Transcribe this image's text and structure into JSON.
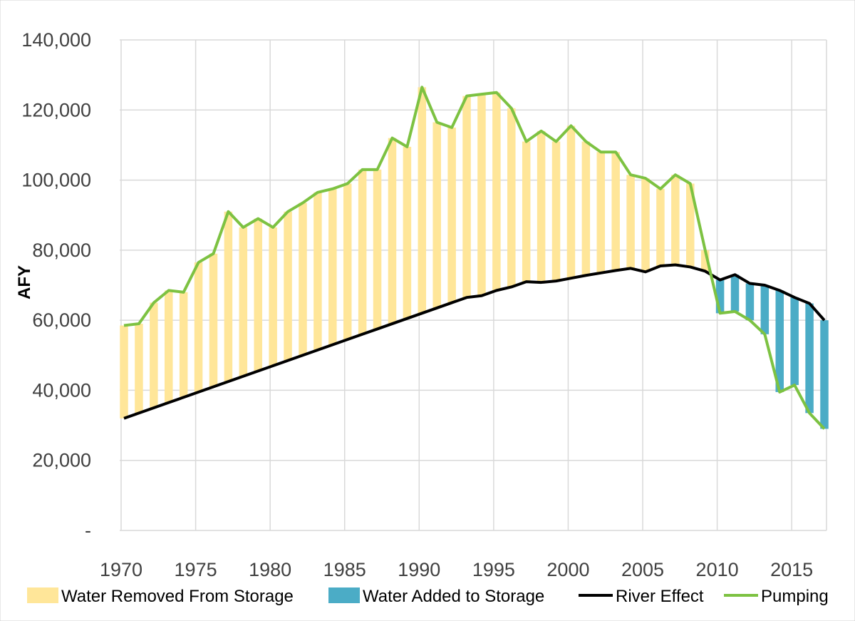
{
  "chart_data": {
    "type": "line",
    "title": "",
    "ylabel": "AFY",
    "xlabel": "",
    "ylim": [
      0,
      140000
    ],
    "xlim": [
      1970,
      2017
    ],
    "yticks": [
      0,
      20000,
      40000,
      60000,
      80000,
      100000,
      120000,
      140000
    ],
    "ytick_labels": [
      "-",
      "20,000",
      "40,000",
      "60,000",
      "80,000",
      "100,000",
      "120,000",
      "140,000"
    ],
    "xticks": [
      1970,
      1975,
      1980,
      1985,
      1990,
      1995,
      2000,
      2005,
      2010,
      2015
    ],
    "xtick_labels": [
      "1970",
      "1975",
      "1980",
      "1985",
      "1990",
      "1995",
      "2000",
      "2005",
      "2010",
      "2015"
    ],
    "grid": true,
    "legend_position": "bottom",
    "x": [
      1970,
      1971,
      1972,
      1973,
      1974,
      1975,
      1976,
      1977,
      1978,
      1979,
      1980,
      1981,
      1982,
      1983,
      1984,
      1985,
      1986,
      1987,
      1988,
      1989,
      1990,
      1991,
      1992,
      1993,
      1994,
      1995,
      1996,
      1997,
      1998,
      1999,
      2000,
      2001,
      2002,
      2003,
      2004,
      2005,
      2006,
      2007,
      2008,
      2009,
      2010,
      2011,
      2012,
      2013,
      2014,
      2015,
      2016,
      2017
    ],
    "series": [
      {
        "name": "Pumping",
        "color": "#7dc242",
        "values": [
          58500,
          59000,
          65000,
          68500,
          68000,
          76500,
          79000,
          91000,
          86500,
          89000,
          86500,
          91000,
          93500,
          96500,
          97500,
          99000,
          103000,
          103000,
          112000,
          109500,
          126500,
          116500,
          115000,
          124000,
          124500,
          125000,
          120500,
          111000,
          114000,
          111000,
          115500,
          111000,
          108000,
          108000,
          101500,
          100500,
          97500,
          101500,
          99000,
          80000,
          62000,
          62500,
          60000,
          56000,
          39500,
          41500,
          33500,
          29000
        ]
      },
      {
        "name": "River Effect",
        "color": "#000000",
        "values": [
          32000,
          33500,
          35000,
          36500,
          38000,
          39500,
          41000,
          42500,
          44000,
          45500,
          47000,
          48500,
          50000,
          51500,
          53000,
          54500,
          56000,
          57500,
          59000,
          60500,
          62000,
          63500,
          65000,
          66500,
          67000,
          68500,
          69500,
          71000,
          70800,
          71200,
          72000,
          72800,
          73500,
          74200,
          74800,
          73800,
          75500,
          75800,
          75200,
          74000,
          71500,
          73000,
          70500,
          70000,
          68500,
          66500,
          64800,
          60000
        ]
      },
      {
        "name": "Water Removed From Storage",
        "color": "#ffe699"
      },
      {
        "name": "Water Added to Storage",
        "color": "#4bacc6"
      }
    ]
  }
}
